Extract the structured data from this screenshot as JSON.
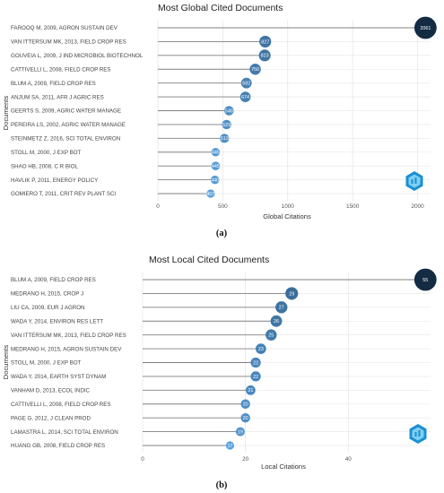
{
  "chart_data": [
    {
      "type": "lollipop",
      "title": "Most Global Cited Documents",
      "xlabel": "Global Citations",
      "ylabel": "Documents",
      "xlim": [
        0,
        2100
      ],
      "xticks": [
        "0",
        "500",
        "1000",
        "1500",
        "2000"
      ],
      "xtick_values": [
        0,
        500,
        1000,
        1500,
        2000
      ],
      "grid": true,
      "caption": "(a)",
      "categories": [
        "FAROOQ M, 2009, AGRON SUSTAIN DEV",
        "VAN ITTERSUM MK, 2013, FIELD CROP RES",
        "GOUVEIA L, 2009, J IND MICROBIOL BIOTECHNOL",
        "CATTIVELLI L, 2008, FIELD CROP RES",
        "BLUM A, 2009, FIELD CROP RES",
        "ANJUM SA, 2011, AFR J AGRIC RES",
        "GEERTS S, 2009, AGRIC WATER MANAGE",
        "PEREIRA LS, 2002, AGRIC WATER MANAGE",
        "STEINMETZ Z, 2016, SCI TOTAL ENVIRON",
        "STOLL M, 2000, J EXP BOT",
        "SHAO HB, 2008, C R BIOL",
        "HAVLIK P, 2011, ENERGY POLICY",
        "GOMIERO T, 2011, CRIT REV PLANT SCI"
      ],
      "values": [
        2061,
        827,
        823,
        750,
        682,
        674,
        548,
        529,
        513,
        445,
        445,
        440,
        407
      ],
      "color_scale": {
        "low": "#5aa2e0",
        "high": "#132b43"
      }
    },
    {
      "type": "lollipop",
      "title": "Most Local Cited Documents",
      "xlabel": "Local Citations",
      "ylabel": "Documents",
      "xlim": [
        0,
        56
      ],
      "xticks": [
        "0",
        "20",
        "40"
      ],
      "xtick_values": [
        0,
        20,
        40
      ],
      "grid": true,
      "caption": "(b)",
      "categories": [
        "BLUM A, 2009, FIELD CROP RES",
        "MEDRANO H, 2015, CROP J",
        "LIU CA, 2009, EUR J AGRON",
        "WADA Y, 2014, ENVIRON RES LETT",
        "VAN ITTERSUM MK, 2013, FIELD CROP RES",
        "MEDRANO H, 2015, AGRON SUSTAIN DEV",
        "STOLL M, 2000, J EXP BOT",
        "WADA Y, 2014, EARTH SYST DYNAM",
        "VANHAM D, 2013, ECOL INDIC",
        "CATTIVELLI L, 2008, FIELD CROP RES",
        "PAGE G, 2012, J CLEAN PROD",
        "LAMASTRA L, 2014, SCI TOTAL ENVIRON",
        "HUANG GB, 2008, FIELD CROP RES"
      ],
      "values": [
        55,
        29,
        27,
        26,
        25,
        23,
        22,
        22,
        21,
        20,
        20,
        19,
        17
      ],
      "color_scale": {
        "low": "#5aa2e0",
        "high": "#132b43"
      }
    }
  ],
  "logo_icon": "bibliometrix-hexagon-logo",
  "colors": {
    "line": "#808080",
    "grid": "#e6e6e6",
    "logo_outer": "#1b8fd3",
    "logo_inner": "#7fd0f0"
  }
}
